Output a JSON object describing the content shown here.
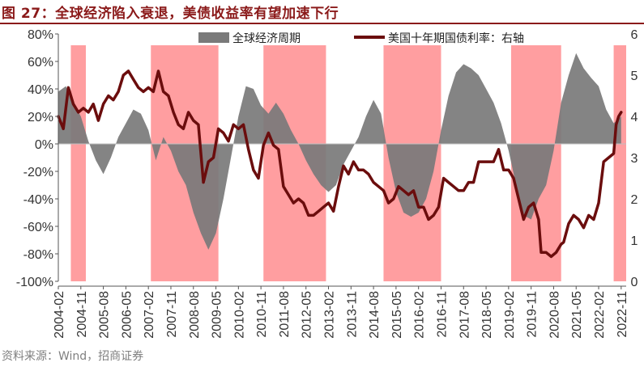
{
  "title": "图 27：全球经济陷入衰退，美债收益率有望加速下行",
  "source": "资料来源：Wind，招商证券",
  "colors": {
    "title": "#8b1a1a",
    "area": "#7a7a7a",
    "line": "#6b0d0d",
    "recession": "#ff9ea0"
  },
  "chart_data": {
    "type": "line",
    "left_axis": {
      "ticks": [
        "80%",
        "60%",
        "40%",
        "20%",
        "0%",
        "-20%",
        "-40%",
        "-60%",
        "-80%",
        "-100%"
      ],
      "min": -100,
      "max": 80
    },
    "right_axis": {
      "ticks": [
        "6",
        "5",
        "4",
        "3",
        "2",
        "1",
        "0"
      ],
      "min": 0,
      "max": 6
    },
    "x_ticks": [
      "2004-02",
      "2004-11",
      "2005-08",
      "2006-05",
      "2007-02",
      "2007-11",
      "2008-08",
      "2009-05",
      "2010-02",
      "2010-11",
      "2011-08",
      "2012-05",
      "2013-02",
      "2013-11",
      "2014-08",
      "2015-05",
      "2016-02",
      "2016-11",
      "2017-08",
      "2018-05",
      "2019-02",
      "2019-11",
      "2020-08",
      "2021-05",
      "2022-02",
      "2022-11"
    ],
    "x_start": "2004-02",
    "x_end": "2023-01",
    "recession_periods": [
      [
        "2004-07",
        "2005-01"
      ],
      [
        "2007-03",
        "2009-06"
      ],
      [
        "2010-12",
        "2013-01"
      ],
      [
        "2014-12",
        "2016-11"
      ],
      [
        "2019-03",
        "2020-11"
      ],
      [
        "2022-08",
        "2023-01"
      ]
    ],
    "series": [
      {
        "name": "全球经济周期",
        "axis": "left",
        "style": "area",
        "points": [
          [
            "2004-02",
            38
          ],
          [
            "2004-05",
            42
          ],
          [
            "2004-08",
            30
          ],
          [
            "2004-11",
            20
          ],
          [
            "2005-02",
            2
          ],
          [
            "2005-05",
            -12
          ],
          [
            "2005-08",
            -22
          ],
          [
            "2005-11",
            -10
          ],
          [
            "2006-02",
            5
          ],
          [
            "2006-05",
            15
          ],
          [
            "2006-08",
            25
          ],
          [
            "2006-11",
            22
          ],
          [
            "2007-02",
            10
          ],
          [
            "2007-05",
            -12
          ],
          [
            "2007-08",
            5
          ],
          [
            "2007-11",
            -5
          ],
          [
            "2008-02",
            -20
          ],
          [
            "2008-05",
            -30
          ],
          [
            "2008-08",
            -50
          ],
          [
            "2008-11",
            -65
          ],
          [
            "2009-02",
            -77
          ],
          [
            "2009-05",
            -65
          ],
          [
            "2009-08",
            -40
          ],
          [
            "2009-11",
            -10
          ],
          [
            "2010-02",
            20
          ],
          [
            "2010-05",
            42
          ],
          [
            "2010-08",
            40
          ],
          [
            "2010-11",
            28
          ],
          [
            "2011-02",
            22
          ],
          [
            "2011-05",
            30
          ],
          [
            "2011-08",
            22
          ],
          [
            "2011-11",
            10
          ],
          [
            "2012-02",
            0
          ],
          [
            "2012-05",
            -12
          ],
          [
            "2012-08",
            -22
          ],
          [
            "2012-11",
            -30
          ],
          [
            "2013-02",
            -35
          ],
          [
            "2013-05",
            -30
          ],
          [
            "2013-08",
            -15
          ],
          [
            "2013-11",
            -5
          ],
          [
            "2014-02",
            5
          ],
          [
            "2014-05",
            20
          ],
          [
            "2014-08",
            32
          ],
          [
            "2014-11",
            22
          ],
          [
            "2015-02",
            -10
          ],
          [
            "2015-05",
            -35
          ],
          [
            "2015-08",
            -50
          ],
          [
            "2015-11",
            -53
          ],
          [
            "2016-02",
            -50
          ],
          [
            "2016-05",
            -40
          ],
          [
            "2016-08",
            -20
          ],
          [
            "2016-11",
            10
          ],
          [
            "2017-02",
            35
          ],
          [
            "2017-05",
            52
          ],
          [
            "2017-08",
            58
          ],
          [
            "2017-11",
            55
          ],
          [
            "2018-02",
            50
          ],
          [
            "2018-05",
            40
          ],
          [
            "2018-08",
            30
          ],
          [
            "2018-11",
            15
          ],
          [
            "2019-02",
            -5
          ],
          [
            "2019-05",
            -30
          ],
          [
            "2019-08",
            -52
          ],
          [
            "2019-11",
            -55
          ],
          [
            "2020-02",
            -40
          ],
          [
            "2020-05",
            -30
          ],
          [
            "2020-08",
            -5
          ],
          [
            "2020-11",
            30
          ],
          [
            "2021-02",
            50
          ],
          [
            "2021-05",
            66
          ],
          [
            "2021-08",
            55
          ],
          [
            "2021-11",
            48
          ],
          [
            "2022-02",
            42
          ],
          [
            "2022-05",
            25
          ],
          [
            "2022-08",
            15
          ],
          [
            "2022-11",
            20
          ]
        ]
      },
      {
        "name": "美国十年期国债利率：右轴",
        "axis": "right",
        "style": "line",
        "points": [
          [
            "2004-02",
            4.0
          ],
          [
            "2004-04",
            3.7
          ],
          [
            "2004-06",
            4.7
          ],
          [
            "2004-08",
            4.3
          ],
          [
            "2004-10",
            4.1
          ],
          [
            "2004-12",
            4.2
          ],
          [
            "2005-02",
            4.1
          ],
          [
            "2005-04",
            4.3
          ],
          [
            "2005-06",
            3.9
          ],
          [
            "2005-08",
            4.3
          ],
          [
            "2005-10",
            4.5
          ],
          [
            "2005-12",
            4.4
          ],
          [
            "2006-02",
            4.6
          ],
          [
            "2006-04",
            5.0
          ],
          [
            "2006-06",
            5.1
          ],
          [
            "2006-08",
            4.9
          ],
          [
            "2006-10",
            4.7
          ],
          [
            "2006-12",
            4.6
          ],
          [
            "2007-02",
            4.7
          ],
          [
            "2007-04",
            4.6
          ],
          [
            "2007-06",
            5.1
          ],
          [
            "2007-08",
            4.6
          ],
          [
            "2007-10",
            4.5
          ],
          [
            "2007-12",
            4.1
          ],
          [
            "2008-02",
            3.8
          ],
          [
            "2008-04",
            3.7
          ],
          [
            "2008-06",
            4.1
          ],
          [
            "2008-08",
            3.9
          ],
          [
            "2008-10",
            3.8
          ],
          [
            "2008-12",
            2.4
          ],
          [
            "2009-02",
            2.9
          ],
          [
            "2009-04",
            3.0
          ],
          [
            "2009-06",
            3.7
          ],
          [
            "2009-08",
            3.6
          ],
          [
            "2009-10",
            3.4
          ],
          [
            "2009-12",
            3.8
          ],
          [
            "2010-02",
            3.7
          ],
          [
            "2010-04",
            3.8
          ],
          [
            "2010-06",
            3.2
          ],
          [
            "2010-08",
            2.7
          ],
          [
            "2010-10",
            2.5
          ],
          [
            "2010-12",
            3.3
          ],
          [
            "2011-02",
            3.6
          ],
          [
            "2011-04",
            3.3
          ],
          [
            "2011-06",
            3.2
          ],
          [
            "2011-08",
            2.3
          ],
          [
            "2011-10",
            2.1
          ],
          [
            "2011-12",
            1.9
          ],
          [
            "2012-02",
            2.0
          ],
          [
            "2012-04",
            1.9
          ],
          [
            "2012-06",
            1.6
          ],
          [
            "2012-08",
            1.6
          ],
          [
            "2012-10",
            1.7
          ],
          [
            "2012-12",
            1.8
          ],
          [
            "2013-02",
            1.9
          ],
          [
            "2013-04",
            1.7
          ],
          [
            "2013-06",
            2.3
          ],
          [
            "2013-08",
            2.8
          ],
          [
            "2013-10",
            2.6
          ],
          [
            "2013-12",
            2.9
          ],
          [
            "2014-02",
            2.7
          ],
          [
            "2014-04",
            2.7
          ],
          [
            "2014-06",
            2.6
          ],
          [
            "2014-08",
            2.4
          ],
          [
            "2014-10",
            2.3
          ],
          [
            "2014-12",
            2.2
          ],
          [
            "2015-02",
            1.9
          ],
          [
            "2015-04",
            2.0
          ],
          [
            "2015-06",
            2.3
          ],
          [
            "2015-08",
            2.2
          ],
          [
            "2015-10",
            2.1
          ],
          [
            "2015-12",
            2.2
          ],
          [
            "2016-02",
            1.8
          ],
          [
            "2016-04",
            1.8
          ],
          [
            "2016-06",
            1.5
          ],
          [
            "2016-08",
            1.6
          ],
          [
            "2016-10",
            1.8
          ],
          [
            "2016-12",
            2.5
          ],
          [
            "2017-02",
            2.4
          ],
          [
            "2017-04",
            2.3
          ],
          [
            "2017-06",
            2.2
          ],
          [
            "2017-08",
            2.2
          ],
          [
            "2017-10",
            2.4
          ],
          [
            "2017-12",
            2.4
          ],
          [
            "2018-02",
            2.9
          ],
          [
            "2018-04",
            2.9
          ],
          [
            "2018-06",
            2.9
          ],
          [
            "2018-08",
            2.9
          ],
          [
            "2018-10",
            3.2
          ],
          [
            "2018-12",
            2.7
          ],
          [
            "2019-02",
            2.7
          ],
          [
            "2019-04",
            2.5
          ],
          [
            "2019-06",
            2.0
          ],
          [
            "2019-08",
            1.5
          ],
          [
            "2019-10",
            1.8
          ],
          [
            "2019-12",
            1.9
          ],
          [
            "2020-02",
            1.5
          ],
          [
            "2020-03",
            0.7
          ],
          [
            "2020-05",
            0.7
          ],
          [
            "2020-07",
            0.6
          ],
          [
            "2020-09",
            0.7
          ],
          [
            "2020-11",
            0.9
          ],
          [
            "2020-12",
            0.95
          ],
          [
            "2021-02",
            1.4
          ],
          [
            "2021-04",
            1.6
          ],
          [
            "2021-06",
            1.5
          ],
          [
            "2021-08",
            1.3
          ],
          [
            "2021-10",
            1.6
          ],
          [
            "2021-12",
            1.5
          ],
          [
            "2022-02",
            1.9
          ],
          [
            "2022-04",
            2.9
          ],
          [
            "2022-06",
            3.0
          ],
          [
            "2022-08",
            3.1
          ],
          [
            "2022-09",
            3.8
          ],
          [
            "2022-10",
            4.0
          ],
          [
            "2022-11",
            4.1
          ]
        ]
      }
    ]
  }
}
